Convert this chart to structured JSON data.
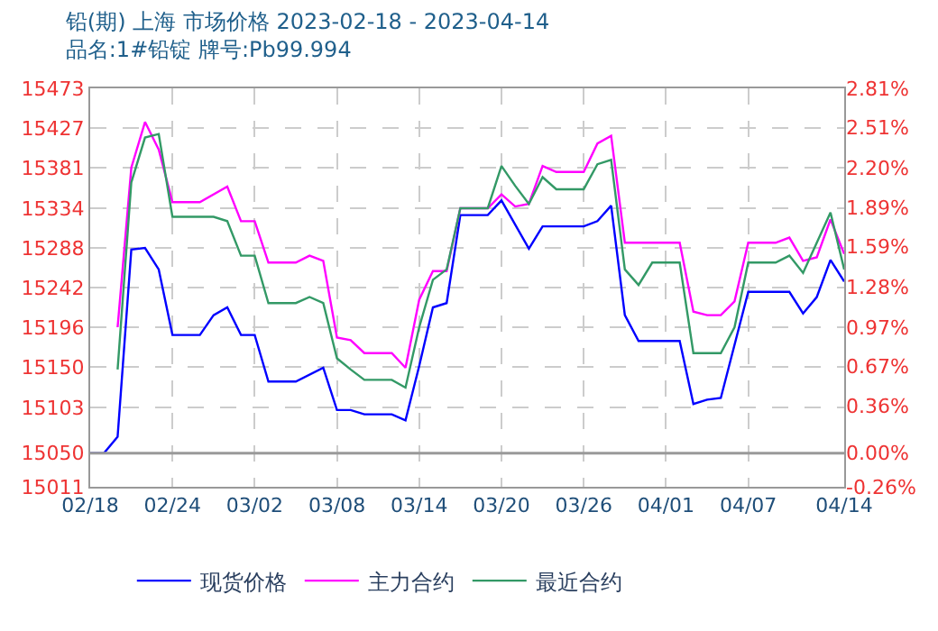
{
  "chart_data": {
    "type": "line",
    "title": "铅(期) 上海 市场价格 2023-02-18 - 2023-04-14",
    "subtitle": "品名:1#铅锭 牌号:Pb99.994",
    "series": [
      {
        "name": "现货价格",
        "color": "#0000ff",
        "x": [
          "2023-02-18",
          "2023-02-19",
          "2023-02-20",
          "2023-02-21",
          "2023-02-22",
          "2023-02-23",
          "2023-02-24",
          "2023-02-26",
          "2023-02-27",
          "2023-02-28",
          "2023-03-01",
          "2023-03-02",
          "2023-03-03",
          "2023-03-05",
          "2023-03-07",
          "2023-03-08",
          "2023-03-09",
          "2023-03-10",
          "2023-03-12",
          "2023-03-13",
          "2023-03-14",
          "2023-03-15",
          "2023-03-16",
          "2023-03-17",
          "2023-03-19",
          "2023-03-20",
          "2023-03-22",
          "2023-03-23",
          "2023-03-26",
          "2023-03-27",
          "2023-03-28",
          "2023-03-29",
          "2023-03-30",
          "2023-04-02",
          "2023-04-03",
          "2023-04-04",
          "2023-04-05",
          "2023-04-07",
          "2023-04-10",
          "2023-04-11",
          "2023-04-12",
          "2023-04-13",
          "2023-04-14"
        ],
        "values": [
          15050,
          15050,
          15069,
          15286,
          15288,
          15263,
          15187,
          15187,
          15210,
          15219,
          15187,
          15187,
          15133,
          15133,
          15149,
          15100,
          15100,
          15095,
          15095,
          15088,
          15151,
          15219,
          15224,
          15326,
          15326,
          15343,
          15287,
          15313,
          15313,
          15319,
          15337,
          15210,
          15180,
          15180,
          15107,
          15112,
          15114,
          15237,
          15237,
          15212,
          15231,
          15274,
          15249
        ]
      },
      {
        "name": "主力合约",
        "color": "#ff00ff",
        "x": [
          "2023-02-20",
          "2023-02-21",
          "2023-02-22",
          "2023-02-23",
          "2023-02-24",
          "2023-02-26",
          "2023-02-28",
          "2023-03-01",
          "2023-03-02",
          "2023-03-03",
          "2023-03-05",
          "2023-03-06",
          "2023-03-07",
          "2023-03-08",
          "2023-03-09",
          "2023-03-10",
          "2023-03-12",
          "2023-03-13",
          "2023-03-14",
          "2023-03-15",
          "2023-03-16",
          "2023-03-17",
          "2023-03-19",
          "2023-03-20",
          "2023-03-21",
          "2023-03-22",
          "2023-03-23",
          "2023-03-24",
          "2023-03-26",
          "2023-03-27",
          "2023-03-28",
          "2023-03-29",
          "2023-04-02",
          "2023-04-03",
          "2023-04-04",
          "2023-04-05",
          "2023-04-06",
          "2023-04-07",
          "2023-04-09",
          "2023-04-10",
          "2023-04-11",
          "2023-04-12",
          "2023-04-13",
          "2023-04-14"
        ],
        "values": [
          15196,
          15381,
          15434,
          15402,
          15341,
          15341,
          15359,
          15319,
          15319,
          15271,
          15271,
          15279,
          15273,
          15184,
          15181,
          15166,
          15166,
          15149,
          15228,
          15261,
          15261,
          15334,
          15334,
          15350,
          15336,
          15339,
          15383,
          15376,
          15376,
          15409,
          15418,
          15294,
          15294,
          15214,
          15210,
          15210,
          15226,
          15294,
          15294,
          15300,
          15273,
          15277,
          15321,
          15281
        ]
      },
      {
        "name": "最近合约",
        "color": "#339966",
        "x": [
          "2023-02-20",
          "2023-02-21",
          "2023-02-22",
          "2023-02-23",
          "2023-02-24",
          "2023-02-27",
          "2023-02-28",
          "2023-03-01",
          "2023-03-02",
          "2023-03-03",
          "2023-03-05",
          "2023-03-06",
          "2023-03-07",
          "2023-03-08",
          "2023-03-09",
          "2023-03-10",
          "2023-03-12",
          "2023-03-13",
          "2023-03-14",
          "2023-03-15",
          "2023-03-16",
          "2023-03-17",
          "2023-03-19",
          "2023-03-20",
          "2023-03-21",
          "2023-03-22",
          "2023-03-23",
          "2023-03-24",
          "2023-03-26",
          "2023-03-27",
          "2023-03-28",
          "2023-03-29",
          "2023-03-30",
          "2023-03-31",
          "2023-04-02",
          "2023-04-03",
          "2023-04-05",
          "2023-04-06",
          "2023-04-07",
          "2023-04-09",
          "2023-04-10",
          "2023-04-11",
          "2023-04-13",
          "2023-04-14"
        ],
        "values": [
          15147,
          15364,
          15416,
          15420,
          15324,
          15324,
          15319,
          15279,
          15279,
          15224,
          15224,
          15231,
          15224,
          15160,
          15147,
          15135,
          15135,
          15126,
          15196,
          15251,
          15263,
          15334,
          15334,
          15383,
          15360,
          15339,
          15370,
          15356,
          15356,
          15385,
          15390,
          15263,
          15245,
          15271,
          15271,
          15166,
          15166,
          15196,
          15271,
          15271,
          15279,
          15259,
          15329,
          15263
        ]
      }
    ],
    "xlim": [
      "2023-02-18",
      "2023-04-14"
    ],
    "xticks": [
      {
        "value": "2023-02-18",
        "label": "02/18"
      },
      {
        "value": "2023-02-24",
        "label": "02/24"
      },
      {
        "value": "2023-03-02",
        "label": "03/02"
      },
      {
        "value": "2023-03-08",
        "label": "03/08"
      },
      {
        "value": "2023-03-14",
        "label": "03/14"
      },
      {
        "value": "2023-03-20",
        "label": "03/20"
      },
      {
        "value": "2023-03-26",
        "label": "03/26"
      },
      {
        "value": "2023-04-01",
        "label": "04/01"
      },
      {
        "value": "2023-04-07",
        "label": "04/07"
      },
      {
        "value": "2023-04-14",
        "label": "04/14"
      }
    ],
    "ylim": [
      15011,
      15473
    ],
    "yticks": [
      15011,
      15050,
      15103,
      15150,
      15196,
      15242,
      15288,
      15334,
      15381,
      15427,
      15473
    ],
    "y2lim": [
      -0.26,
      2.81
    ],
    "y2ticks": [
      {
        "value": -0.26,
        "label": "-0.26%"
      },
      {
        "value": 0.0,
        "label": "0.00%"
      },
      {
        "value": 0.36,
        "label": "0.36%"
      },
      {
        "value": 0.67,
        "label": "0.67%"
      },
      {
        "value": 0.97,
        "label": "0.97%"
      },
      {
        "value": 1.28,
        "label": "1.28%"
      },
      {
        "value": 1.59,
        "label": "1.59%"
      },
      {
        "value": 1.89,
        "label": "1.89%"
      },
      {
        "value": 2.2,
        "label": "2.20%"
      },
      {
        "value": 2.51,
        "label": "2.51%"
      },
      {
        "value": 2.81,
        "label": "2.81%"
      }
    ],
    "ref_lines": [
      {
        "axis": "y",
        "value": 15050,
        "color": "#999999"
      }
    ],
    "grid": true,
    "legend": "bottom",
    "marker": "none",
    "line_style": "solid"
  }
}
